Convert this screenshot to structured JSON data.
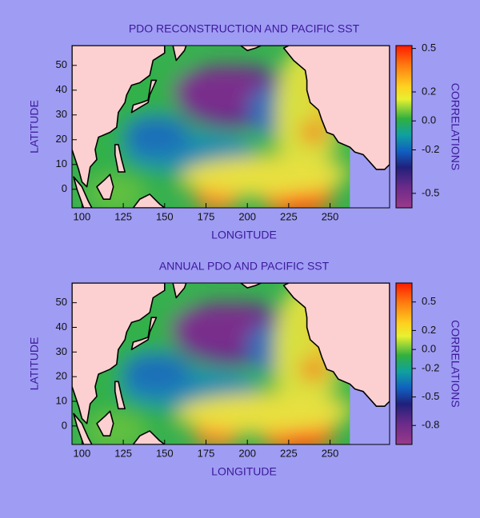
{
  "chart_data": [
    {
      "type": "contour_map",
      "title": "PDO RECONSTRUCTION AND PACIFIC SST",
      "xlabel": "LONGITUDE",
      "ylabel": "LATITUDE",
      "xlim": [
        94,
        286
      ],
      "ylim": [
        -7.5,
        58
      ],
      "xticks": [
        100,
        125,
        150,
        175,
        200,
        225,
        250
      ],
      "yticks": [
        0,
        10,
        20,
        30,
        40,
        50
      ],
      "colorbar": {
        "label": "CORRELATIONS",
        "lim": [
          -0.6,
          0.52
        ],
        "ticks": [
          0.5,
          0.2,
          {
            "value": 0,
            "label": "0.0"
          },
          -0.2,
          -0.5
        ]
      }
    },
    {
      "type": "contour_map",
      "title": "ANNUAL  PDO AND PACIFIC SST",
      "xlabel": "LONGITUDE",
      "ylabel": "LATITUDE",
      "xlim": [
        94,
        286
      ],
      "ylim": [
        -7.5,
        58
      ],
      "xticks": [
        100,
        125,
        150,
        175,
        200,
        225,
        250
      ],
      "yticks": [
        0,
        10,
        20,
        30,
        40,
        50
      ],
      "colorbar": {
        "label": "CORRELATIONS",
        "lim": [
          -1.0,
          0.7
        ],
        "ticks": [
          0.5,
          0.2,
          {
            "value": 0,
            "label": "0.0"
          },
          -0.2,
          -0.5,
          -0.8
        ]
      }
    }
  ]
}
